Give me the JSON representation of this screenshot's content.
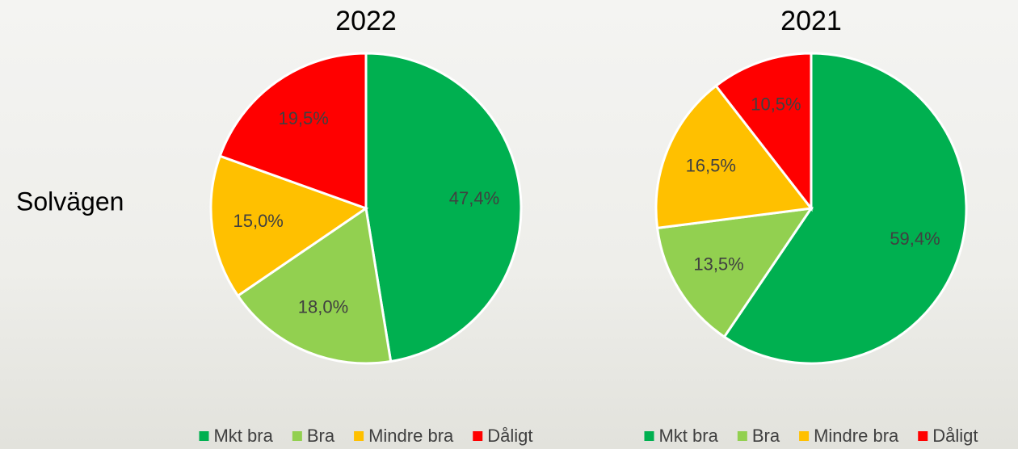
{
  "label": "Solvägen",
  "chart_data": [
    {
      "type": "pie",
      "title": "2022",
      "categories": [
        "Mkt bra",
        "Bra",
        "Mindre bra",
        "Dåligt"
      ],
      "values": [
        47.4,
        18.0,
        15.0,
        19.5
      ],
      "value_labels": [
        "47,4%",
        "18,0%",
        "15,0%",
        "19,5%"
      ],
      "colors": [
        "#00b050",
        "#92d050",
        "#ffc000",
        "#ff0000"
      ]
    },
    {
      "type": "pie",
      "title": "2021",
      "categories": [
        "Mkt bra",
        "Bra",
        "Mindre bra",
        "Dåligt"
      ],
      "values": [
        59.4,
        13.5,
        16.5,
        10.5
      ],
      "value_labels": [
        "59,4%",
        "13,5%",
        "16,5%",
        "10,5%"
      ],
      "colors": [
        "#00b050",
        "#92d050",
        "#ffc000",
        "#ff0000"
      ]
    }
  ]
}
